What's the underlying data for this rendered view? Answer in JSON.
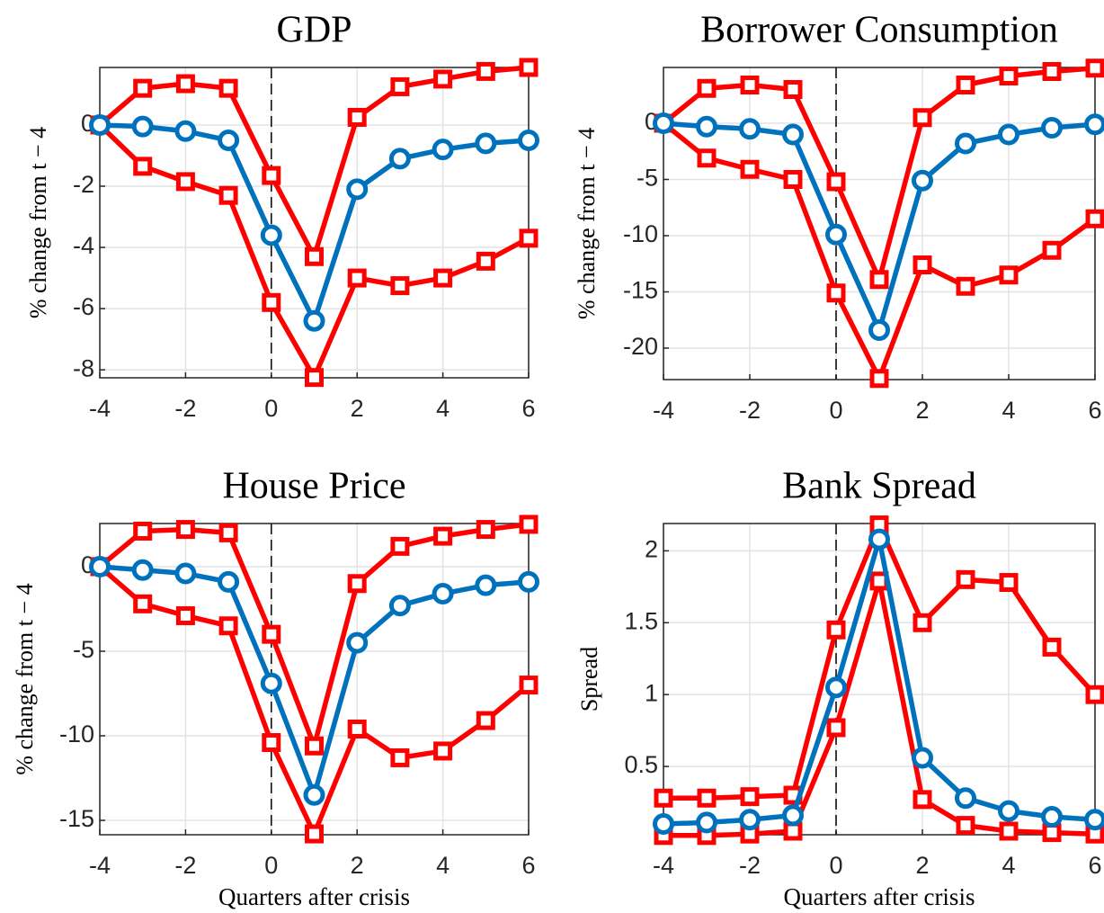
{
  "chart_data": [
    {
      "type": "line",
      "title": "GDP",
      "ylabel": "% change from t − 4",
      "x": [
        -4,
        -3,
        -2,
        -1,
        0,
        1,
        2,
        3,
        4,
        5,
        6
      ],
      "xlim": [
        -4,
        6
      ],
      "xticks": [
        -4,
        -2,
        0,
        2,
        4,
        6
      ],
      "ylim": [
        -8.26,
        1.88
      ],
      "yticks": [
        -8,
        -6,
        -4,
        -2,
        0
      ],
      "grid": true,
      "vline": 0,
      "series": [
        {
          "color": "#FF0000",
          "marker": "square",
          "values": [
            0,
            1.2,
            1.35,
            1.2,
            -1.65,
            -4.3,
            0.25,
            1.25,
            1.5,
            1.75,
            1.88
          ]
        },
        {
          "color": "#FF0000",
          "marker": "square",
          "values": [
            0,
            -1.35,
            -1.85,
            -2.3,
            -5.8,
            -8.25,
            -5.0,
            -5.25,
            -5.0,
            -4.45,
            -3.7
          ]
        },
        {
          "color": "#0072BD",
          "marker": "circle",
          "values": [
            0,
            -0.05,
            -0.2,
            -0.5,
            -3.6,
            -6.4,
            -2.1,
            -1.1,
            -0.8,
            -0.6,
            -0.5
          ]
        }
      ]
    },
    {
      "type": "line",
      "title": "Borrower Consumption",
      "ylabel": "% change from t − 4",
      "x": [
        -4,
        -3,
        -2,
        -1,
        0,
        1,
        2,
        3,
        4,
        5,
        6
      ],
      "xlim": [
        -4,
        6
      ],
      "xticks": [
        -4,
        -2,
        0,
        2,
        4,
        6
      ],
      "ylim": [
        -22.8,
        4.96
      ],
      "yticks": [
        -20,
        -15,
        -10,
        -5,
        0
      ],
      "grid": true,
      "vline": 0,
      "series": [
        {
          "color": "#FF0000",
          "marker": "square",
          "values": [
            0,
            3.1,
            3.4,
            3.0,
            -5.2,
            -13.9,
            0.5,
            3.4,
            4.2,
            4.6,
            4.9
          ]
        },
        {
          "color": "#FF0000",
          "marker": "square",
          "values": [
            0,
            -3.1,
            -4.1,
            -5.0,
            -15.1,
            -22.7,
            -12.6,
            -14.5,
            -13.5,
            -11.3,
            -8.5
          ]
        },
        {
          "color": "#0072BD",
          "marker": "circle",
          "values": [
            0,
            -0.3,
            -0.5,
            -1.0,
            -9.9,
            -18.4,
            -5.1,
            -1.8,
            -1.0,
            -0.4,
            -0.1
          ]
        }
      ]
    },
    {
      "type": "line",
      "title": "House Price",
      "ylabel": "% change from t − 4",
      "xlabel": "Quarters after crisis",
      "x": [
        -4,
        -3,
        -2,
        -1,
        0,
        1,
        2,
        3,
        4,
        5,
        6
      ],
      "xlim": [
        -4,
        6
      ],
      "xticks": [
        -4,
        -2,
        0,
        2,
        4,
        6
      ],
      "ylim": [
        -15.85,
        2.55
      ],
      "yticks": [
        -15,
        -10,
        -5,
        0
      ],
      "grid": true,
      "vline": 0,
      "series": [
        {
          "color": "#FF0000",
          "marker": "square",
          "values": [
            0,
            2.1,
            2.2,
            2.0,
            -4.0,
            -10.6,
            -1.0,
            1.2,
            1.8,
            2.2,
            2.5
          ]
        },
        {
          "color": "#FF0000",
          "marker": "square",
          "values": [
            0,
            -2.2,
            -2.9,
            -3.5,
            -10.4,
            -15.8,
            -9.6,
            -11.3,
            -10.9,
            -9.1,
            -7.0
          ]
        },
        {
          "color": "#0072BD",
          "marker": "circle",
          "values": [
            0,
            -0.2,
            -0.4,
            -0.9,
            -6.9,
            -13.5,
            -4.5,
            -2.3,
            -1.6,
            -1.1,
            -0.9
          ]
        }
      ]
    },
    {
      "type": "line",
      "title": "Bank Spread",
      "ylabel": "Spread",
      "xlabel": "Quarters after crisis",
      "x": [
        -4,
        -3,
        -2,
        -1,
        0,
        1,
        2,
        3,
        4,
        5,
        6
      ],
      "xlim": [
        -4,
        6
      ],
      "xticks": [
        -4,
        -2,
        0,
        2,
        4,
        6
      ],
      "ylim": [
        0.025,
        2.19
      ],
      "yticks": [
        0.5,
        1,
        1.5,
        2
      ],
      "grid": true,
      "vline": 0,
      "series": [
        {
          "color": "#FF0000",
          "marker": "square",
          "values": [
            0.28,
            0.28,
            0.29,
            0.3,
            1.45,
            2.18,
            1.5,
            1.8,
            1.78,
            1.33,
            1.0
          ]
        },
        {
          "color": "#FF0000",
          "marker": "square",
          "values": [
            0.02,
            0.02,
            0.03,
            0.05,
            0.77,
            1.79,
            0.27,
            0.09,
            0.05,
            0.04,
            0.03
          ]
        },
        {
          "color": "#0072BD",
          "marker": "circle",
          "values": [
            0.1,
            0.11,
            0.13,
            0.16,
            1.05,
            2.08,
            0.56,
            0.28,
            0.19,
            0.15,
            0.13
          ]
        }
      ]
    }
  ]
}
